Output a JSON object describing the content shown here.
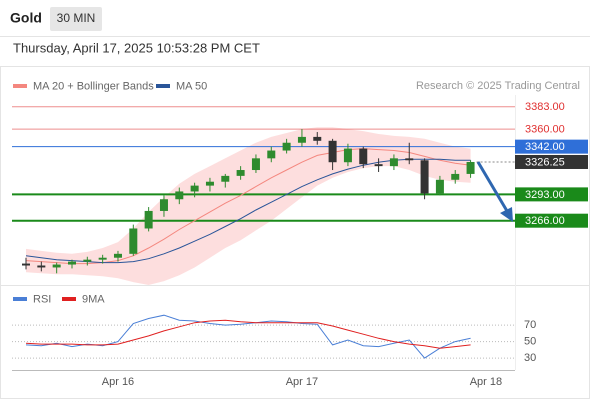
{
  "header": {
    "symbol": "Gold",
    "timeframe": "30 MIN",
    "datetime": "Thursday, April 17, 2025 10:53:28 PM CET",
    "source": "Research © 2025 Trading Central"
  },
  "chart_data": [
    {
      "type": "candlestick",
      "categories": [
        null,
        null,
        null,
        null,
        null,
        null,
        "Apr 16",
        null,
        null,
        null,
        null,
        null,
        null,
        null,
        null,
        null,
        null,
        null,
        "Apr 17",
        null,
        null,
        null,
        null,
        null,
        null,
        null,
        null,
        null,
        null,
        null,
        "Apr 18"
      ],
      "open": [
        3222,
        3220,
        3218,
        3221,
        3224,
        3226,
        3228,
        3232,
        3258,
        3276,
        3288,
        3296,
        3302,
        3306,
        3312,
        3318,
        3330,
        3338,
        3346,
        3352,
        3348,
        3326,
        3340,
        3324,
        3322,
        3330,
        3328,
        3294,
        3308,
        3314,
        null
      ],
      "high": [
        3228,
        3224,
        3223,
        3226,
        3229,
        3231,
        3235,
        3262,
        3280,
        3292,
        3300,
        3305,
        3310,
        3314,
        3322,
        3334,
        3342,
        3350,
        3360,
        3357,
        3350,
        3345,
        3342,
        3330,
        3334,
        3346,
        3330,
        3312,
        3318,
        3328,
        null
      ],
      "low": [
        3216,
        3214,
        3212,
        3217,
        3220,
        3222,
        3224,
        3230,
        3255,
        3270,
        3283,
        3290,
        3296,
        3300,
        3308,
        3315,
        3326,
        3335,
        3342,
        3344,
        3318,
        3322,
        3320,
        3316,
        3318,
        3324,
        3288,
        3292,
        3304,
        3310,
        null
      ],
      "close": [
        3220,
        3218,
        3221,
        3224,
        3226,
        3228,
        3232,
        3258,
        3276,
        3288,
        3296,
        3302,
        3306,
        3312,
        3318,
        3330,
        3338,
        3346,
        3352,
        3348,
        3326,
        3340,
        3324,
        3322,
        3330,
        3328,
        3294,
        3308,
        3314,
        3326.25,
        null
      ],
      "up_color": "#2e8b2e",
      "down_color": "#333333",
      "series": [
        {
          "name": "MA 20 + Bollinger Bands",
          "color": "#f4877f",
          "band_color": "#fcd3d3",
          "values": [
            3225,
            3224,
            3223,
            3222,
            3222,
            3223,
            3225,
            3230,
            3238,
            3247,
            3257,
            3266,
            3275,
            3284,
            3292,
            3301,
            3310,
            3318,
            3326,
            3333,
            3336,
            3339,
            3340,
            3339,
            3338,
            3336,
            3332,
            3328,
            3325,
            3323,
            null
          ],
          "upper": [
            3237,
            3235,
            3233,
            3232,
            3234,
            3238,
            3244,
            3258,
            3275,
            3290,
            3304,
            3314,
            3322,
            3330,
            3338,
            3346,
            3352,
            3356,
            3360,
            3362,
            3362,
            3360,
            3358,
            3355,
            3353,
            3352,
            3350,
            3346,
            3342,
            3340,
            null
          ],
          "lower": [
            3213,
            3212,
            3211,
            3211,
            3210,
            3209,
            3207,
            3203,
            3200,
            3204,
            3210,
            3218,
            3228,
            3238,
            3246,
            3256,
            3266,
            3278,
            3290,
            3302,
            3310,
            3316,
            3320,
            3322,
            3322,
            3318,
            3312,
            3308,
            3306,
            3305,
            null
          ]
        },
        {
          "name": "MA 50",
          "color": "#2a5599",
          "values": [
            3230,
            3228,
            3226,
            3225,
            3224,
            3223,
            3223,
            3224,
            3227,
            3232,
            3238,
            3245,
            3252,
            3260,
            3268,
            3277,
            3285,
            3293,
            3301,
            3308,
            3314,
            3319,
            3323,
            3326,
            3328,
            3329,
            3329,
            3329,
            3328,
            3328,
            null
          ]
        }
      ],
      "levels": [
        {
          "value": 3383,
          "label": "3383.00",
          "color": "#e03030",
          "style": "thin",
          "box": false
        },
        {
          "value": 3360,
          "label": "3360.00",
          "color": "#e03030",
          "style": "thin",
          "box": false
        },
        {
          "value": 3342,
          "label": "3342.00",
          "color": "#2f6fd8",
          "style": "thin",
          "box": true
        },
        {
          "value": 3326.25,
          "label": "3326.25",
          "color": "#333333",
          "style": "dotted",
          "box": true
        },
        {
          "value": 3293,
          "label": "3293.00",
          "color": "#1a8a1a",
          "style": "thick",
          "box": true
        },
        {
          "value": 3266,
          "label": "3266.00",
          "color": "#1a8a1a",
          "style": "thick",
          "box": true
        }
      ],
      "ylim": [
        3200,
        3395
      ]
    },
    {
      "type": "line",
      "series": [
        {
          "name": "RSI",
          "color": "#4a7fd6",
          "values": [
            46,
            45,
            48,
            44,
            47,
            45,
            50,
            72,
            78,
            82,
            76,
            75,
            72,
            70,
            71,
            73,
            75,
            74,
            72,
            71,
            46,
            52,
            45,
            44,
            48,
            52,
            30,
            42,
            50,
            54,
            null
          ]
        },
        {
          "name": "9MA",
          "color": "#e02020",
          "values": [
            48,
            47,
            47,
            47,
            46,
            46,
            47,
            52,
            57,
            63,
            68,
            73,
            75,
            76,
            74,
            73,
            73,
            73,
            73,
            73,
            69,
            64,
            59,
            54,
            50,
            47,
            45,
            42,
            44,
            46,
            null
          ]
        }
      ],
      "ylim": [
        18,
        92
      ],
      "yticks": [
        70,
        50,
        30
      ],
      "grid": true
    }
  ]
}
